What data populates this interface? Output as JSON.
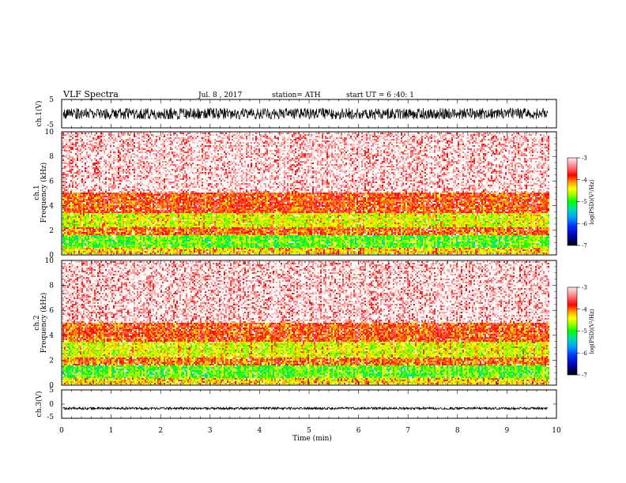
{
  "header": {
    "title": "VLF Spectra",
    "date": "Jul. 8 , 2017",
    "station": "station= ATH",
    "start": "start UT = 6 :40: 1"
  },
  "colors": {
    "frame": "#000000",
    "waveform": "#000000",
    "spectrogram_background": "#ffffff"
  },
  "chart_data": [
    {
      "panel": "ch1-waveform",
      "type": "line",
      "ylabel": "ch.1(V)",
      "ylim": [
        -5,
        5
      ],
      "yticks": [
        "5",
        "-5"
      ],
      "xlim": [
        0,
        10
      ],
      "trace_duration_min": 9.83,
      "envelope_V": [
        -2.0,
        2.0
      ]
    },
    {
      "panel": "ch1-spectrogram",
      "type": "heatmap",
      "ylabel_channel": "ch.1",
      "ylabel": "Frequency (kHz)",
      "ylim": [
        0,
        10
      ],
      "yticks": [
        "0",
        "2",
        "4",
        "6",
        "8",
        "10"
      ],
      "xlim": [
        0,
        10
      ],
      "trace_duration_min": 9.83,
      "bands": [
        {
          "f_low_khz": 0,
          "f_high_khz": 0.6,
          "log_psd": -4.3
        },
        {
          "f_low_khz": 0.6,
          "f_high_khz": 1.7,
          "log_psd": -4.9
        },
        {
          "f_low_khz": 1.7,
          "f_high_khz": 2.3,
          "log_psd": -4.0
        },
        {
          "f_low_khz": 2.3,
          "f_high_khz": 3.5,
          "log_psd": -4.5
        },
        {
          "f_low_khz": 3.5,
          "f_high_khz": 5.1,
          "log_psd": -3.9
        },
        {
          "f_low_khz": 5.1,
          "f_high_khz": 10,
          "log_psd": -3.3
        }
      ],
      "colorbar": {
        "label": "log(PSD)(V²/Hz)",
        "range": [
          -7,
          -3
        ],
        "ticks": [
          "-3",
          "-4",
          "-5",
          "-6",
          "-7"
        ]
      }
    },
    {
      "panel": "ch2-spectrogram",
      "type": "heatmap",
      "ylabel_channel": "ch.2",
      "ylabel": "Frequency (kHz)",
      "ylim": [
        0,
        10
      ],
      "yticks": [
        "0",
        "2",
        "4",
        "6",
        "8",
        "10"
      ],
      "xlim": [
        0,
        10
      ],
      "trace_duration_min": 9.83,
      "bands": [
        {
          "f_low_khz": 0,
          "f_high_khz": 0.6,
          "log_psd": -4.3
        },
        {
          "f_low_khz": 0.6,
          "f_high_khz": 1.7,
          "log_psd": -4.9
        },
        {
          "f_low_khz": 1.7,
          "f_high_khz": 2.3,
          "log_psd": -4.0
        },
        {
          "f_low_khz": 2.3,
          "f_high_khz": 3.5,
          "log_psd": -4.5
        },
        {
          "f_low_khz": 3.5,
          "f_high_khz": 5.1,
          "log_psd": -3.9
        },
        {
          "f_low_khz": 5.1,
          "f_high_khz": 10,
          "log_psd": -3.3
        }
      ],
      "colorbar": {
        "label": "log(PSD)(V²/Hz)",
        "range": [
          -7,
          -3
        ],
        "ticks": [
          "-3",
          "-4",
          "-5",
          "-6",
          "-7"
        ]
      }
    },
    {
      "panel": "ch3-waveform",
      "type": "line",
      "ylabel": "ch.3(V)",
      "ylim": [
        -5,
        5
      ],
      "yticks": [
        "5",
        "0",
        "-5"
      ],
      "xlim": [
        0,
        10
      ],
      "trace_duration_min": 9.83,
      "baseline_V": -1.5,
      "envelope_V": [
        -1.9,
        -1.1
      ],
      "xlabel": "Time (min)",
      "xticks": [
        "0",
        "1",
        "2",
        "3",
        "4",
        "5",
        "6",
        "7",
        "8",
        "9",
        "10"
      ]
    }
  ]
}
